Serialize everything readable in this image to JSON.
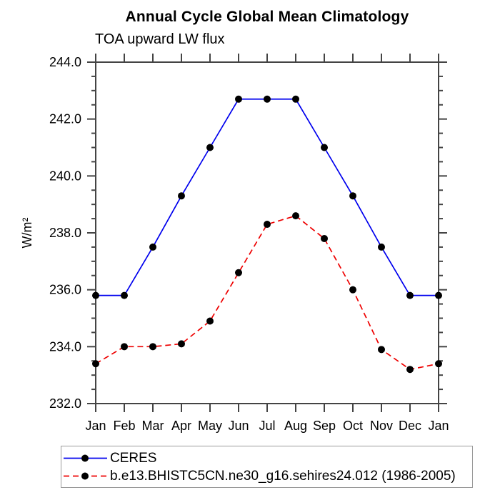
{
  "title": "Annual Cycle Global Mean Climatology",
  "subtitle": "TOA upward LW flux",
  "chart_data": {
    "type": "line",
    "title": "Annual Cycle Global Mean Climatology",
    "subtitle": "TOA upward LW flux",
    "ylabel": "W/m²",
    "xlabel": "",
    "x_categories": [
      "Jan",
      "Feb",
      "Mar",
      "Apr",
      "May",
      "Jun",
      "Jul",
      "Aug",
      "Sep",
      "Oct",
      "Nov",
      "Dec",
      "Jan"
    ],
    "series": [
      {
        "name": "CERES",
        "color": "#0000ee",
        "line_style": "solid",
        "marker": "filled-circle",
        "marker_color": "#000000",
        "values": [
          235.8,
          235.8,
          237.5,
          239.3,
          241.0,
          242.7,
          242.7,
          242.7,
          241.0,
          239.3,
          237.5,
          235.8,
          235.8
        ]
      },
      {
        "name": "b.e13.BHISTC5CN.ne30_g16.sehires24.012 (1986-2005)",
        "color": "#ee0000",
        "line_style": "dashed",
        "marker": "filled-circle",
        "marker_color": "#000000",
        "values": [
          233.4,
          234.0,
          234.0,
          234.1,
          234.9,
          236.6,
          238.3,
          238.6,
          237.8,
          236.0,
          233.9,
          233.2,
          233.4
        ]
      }
    ],
    "ylim": [
      232.0,
      244.0
    ],
    "y_major_step": 2.0,
    "y_minor_step": 0.5,
    "y_tick_labels": [
      "232.0",
      "234.0",
      "236.0",
      "238.0",
      "240.0",
      "242.0",
      "244.0"
    ],
    "grid": false,
    "axis_color": "#444444",
    "legend_position": "bottom-left"
  }
}
